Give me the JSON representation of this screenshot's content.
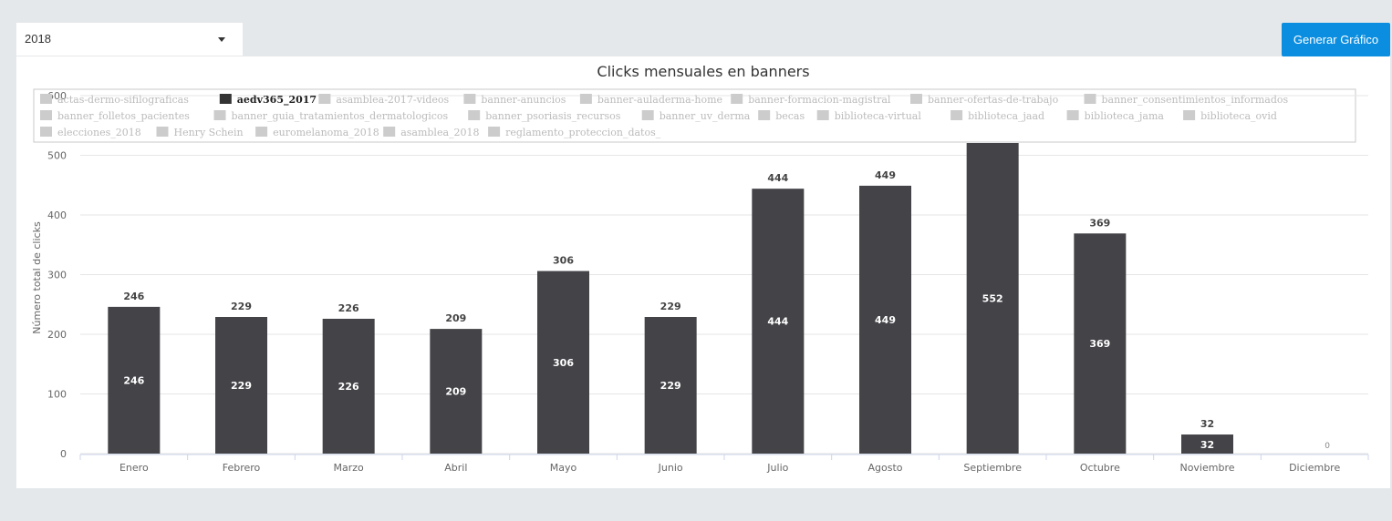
{
  "controls": {
    "year_value": "2018",
    "year_caret_icon": "chevron-down-icon",
    "generate_label": "Generar Gráfico"
  },
  "chart_data": {
    "type": "bar",
    "title": "Clicks mensuales en banners",
    "ylabel": "Número total de clicks",
    "xlabel": "",
    "ylim": [
      0,
      600
    ],
    "yticks": [
      0,
      100,
      200,
      300,
      400,
      500,
      600
    ],
    "grid": true,
    "legend_position": "top",
    "bar_color": "#434348",
    "categories": [
      "Enero",
      "Febrero",
      "Marzo",
      "Abril",
      "Mayo",
      "Junio",
      "Julio",
      "Agosto",
      "Septiembre",
      "Octubre",
      "Noviembre",
      "Diciembre"
    ],
    "series": [
      {
        "name": "aedv365_2017",
        "values": [
          246,
          229,
          226,
          209,
          306,
          229,
          444,
          449,
          552,
          369,
          32,
          0
        ]
      }
    ],
    "legend": {
      "active": "aedv365_2017",
      "rows": [
        [
          "actas-dermo-sifilograficas",
          "aedv365_2017",
          "asamblea-2017-videos",
          "banner-anuncios",
          "banner-auladerma-home",
          "banner-formacion-magistral",
          "banner-ofertas-de-trabajo",
          "banner_consentimientos_informados"
        ],
        [
          "banner_folletos_pacientes",
          "banner_guia_tratamientos_dermatologicos",
          "banner_psoriasis_recursos",
          "banner_uv_derma",
          "becas",
          "biblioteca-virtual",
          "biblioteca_jaad",
          "biblioteca_jama",
          "biblioteca_ovid"
        ],
        [
          "elecciones_2018",
          "Henry Schein",
          "euromelanoma_2018",
          "asamblea_2018",
          "reglamento_proteccion_datos_"
        ]
      ]
    }
  }
}
